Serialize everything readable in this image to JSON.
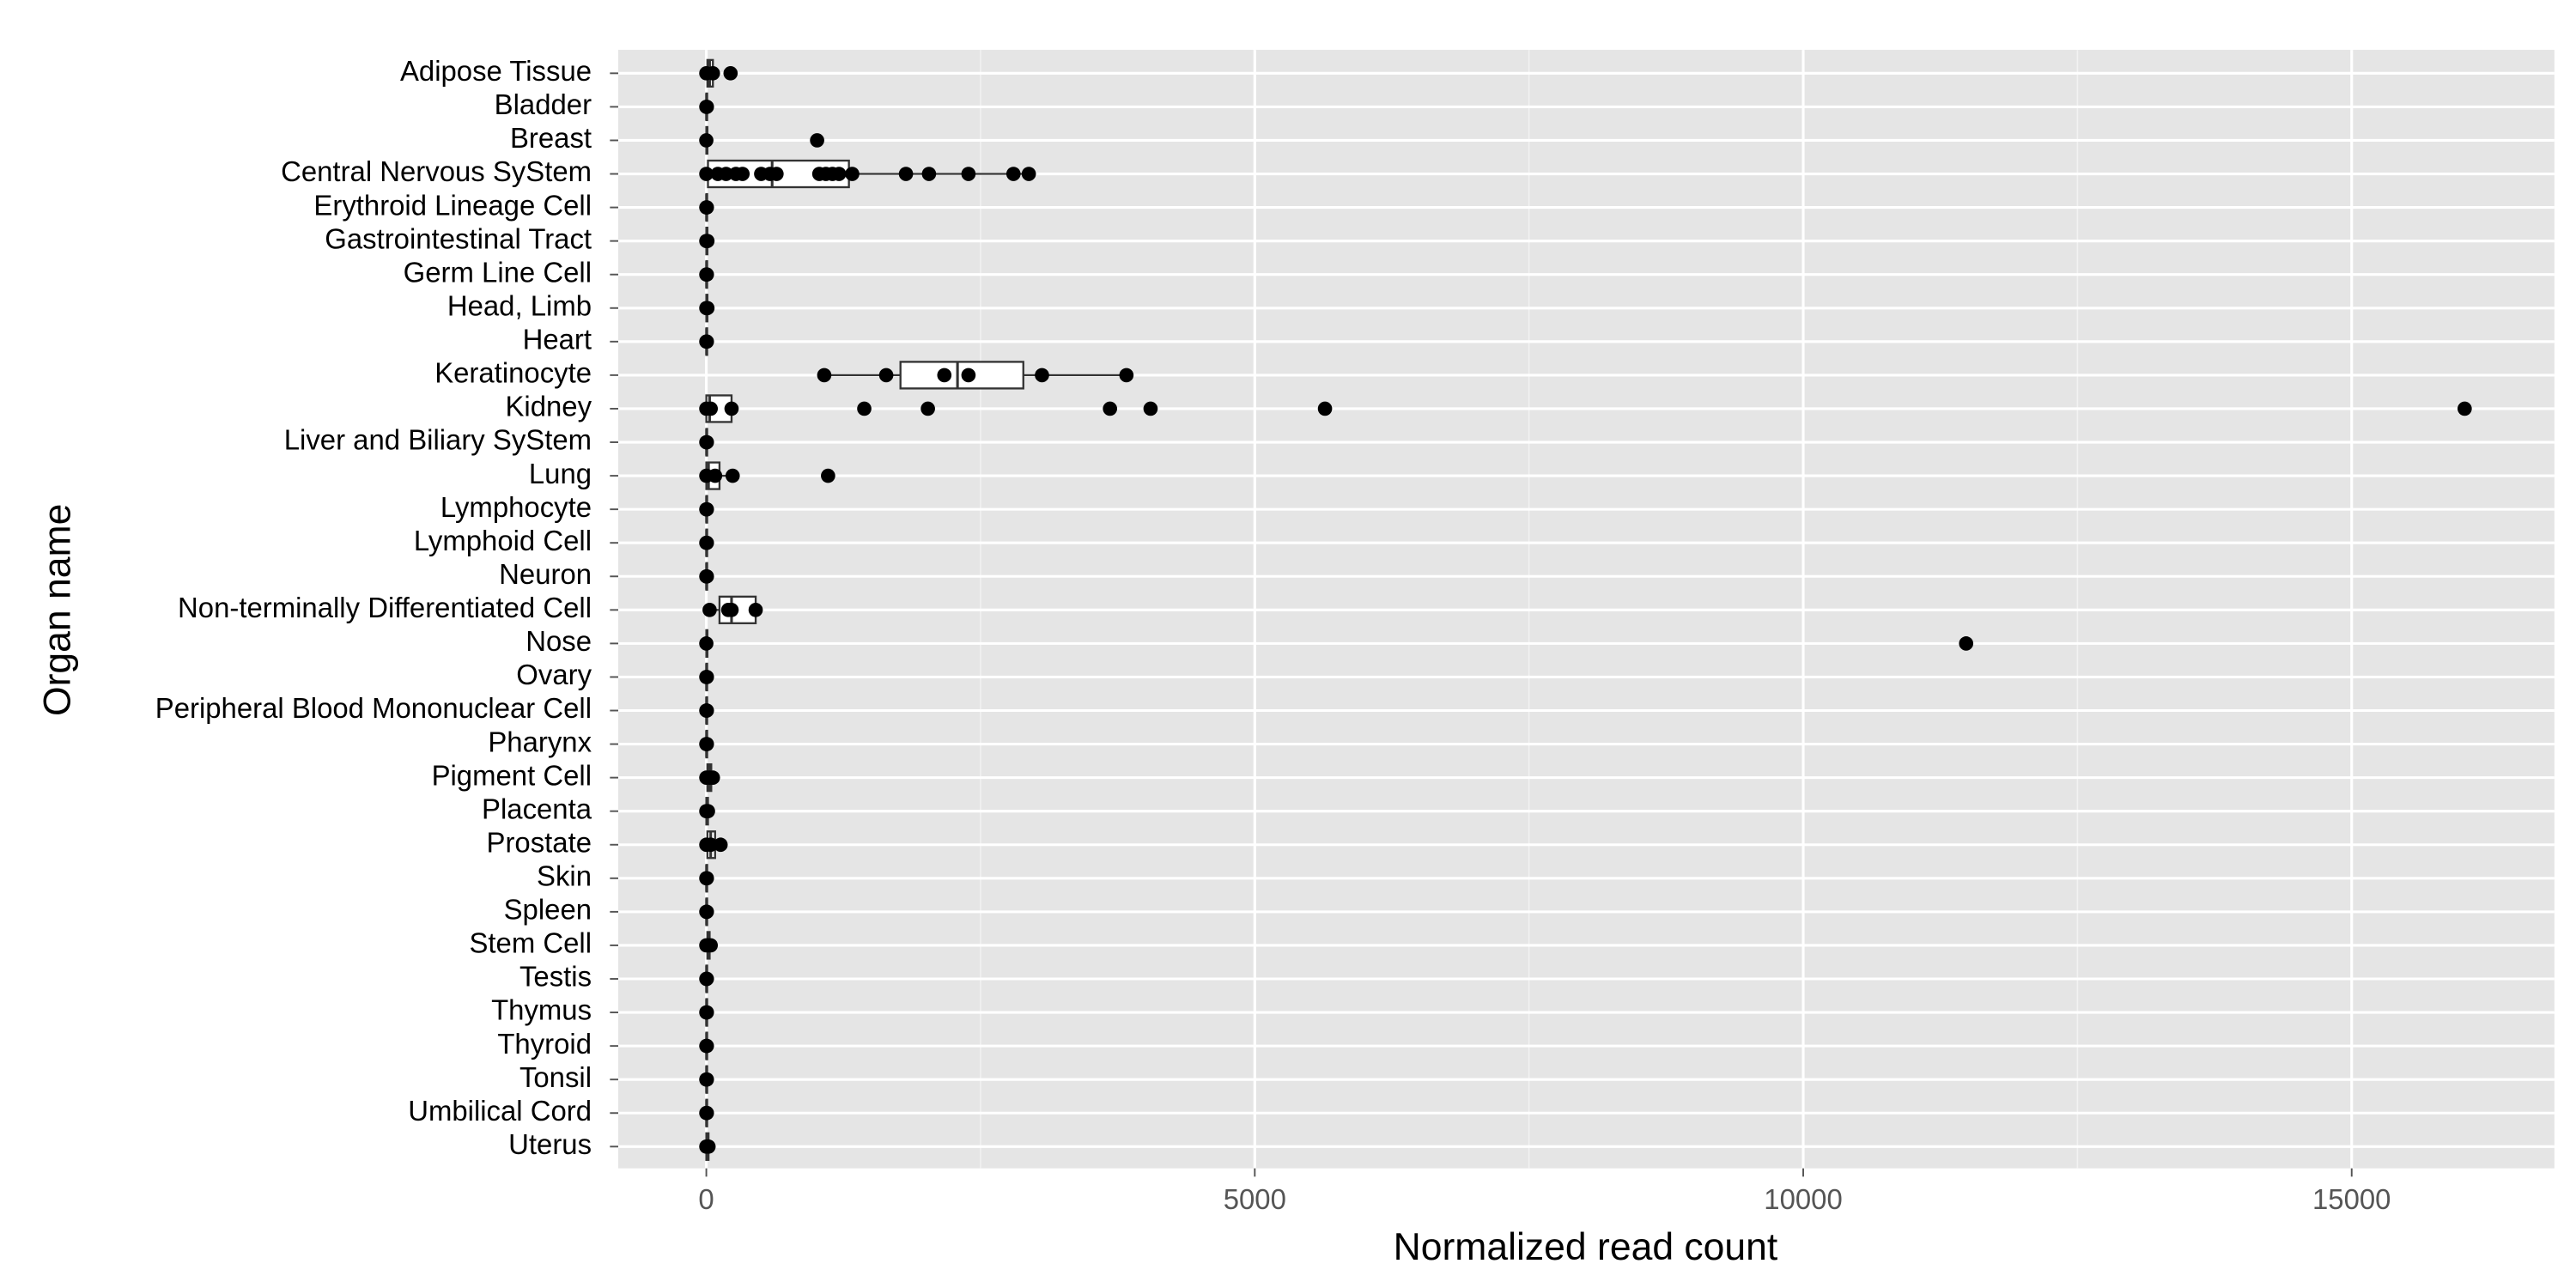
{
  "chart_data": {
    "type": "boxplot",
    "x_label": "Normalized read count",
    "y_label": "Organ name",
    "xlim": [
      -803,
      16848
    ],
    "xticks": [
      0,
      5000,
      10000,
      15000
    ],
    "x_minor_grid": [
      2500,
      7500,
      12500
    ],
    "grid": true,
    "panel_color": "#e5e5e5",
    "point_color": "#000000",
    "groups": [
      {
        "name": "Adipose Tissue",
        "points": [
          0,
          60,
          221
        ],
        "box": [
          0,
          10,
          30,
          60,
          100
        ]
      },
      {
        "name": "Bladder",
        "points": [
          0,
          5
        ],
        "box": [
          0,
          0,
          2,
          5,
          5
        ]
      },
      {
        "name": "Breast",
        "points": [
          0,
          1010
        ],
        "box": [
          0,
          0,
          5,
          10,
          10
        ]
      },
      {
        "name": "Central Nervous SyStem",
        "points": [
          0,
          105,
          180,
          270,
          330,
          500,
          580,
          640,
          1030,
          1090,
          1150,
          1210,
          1330,
          1820,
          2030,
          2390,
          2800,
          2940
        ],
        "box": [
          0,
          15,
          600,
          1300,
          2940
        ]
      },
      {
        "name": "Erythroid Lineage Cell",
        "points": [
          0,
          5
        ],
        "box": [
          0,
          0,
          2,
          5,
          5
        ]
      },
      {
        "name": "Gastrointestinal Tract",
        "points": [
          0,
          10
        ],
        "box": [
          0,
          0,
          5,
          10,
          10
        ]
      },
      {
        "name": "Germ Line Cell",
        "points": [
          0,
          5
        ],
        "box": [
          0,
          0,
          2,
          5,
          5
        ]
      },
      {
        "name": "Head, Limb",
        "points": [
          0,
          10
        ],
        "box": [
          0,
          0,
          5,
          10,
          10
        ]
      },
      {
        "name": "Heart",
        "points": [
          0,
          5
        ],
        "box": [
          0,
          0,
          2,
          5,
          5
        ]
      },
      {
        "name": "Keratinocyte",
        "points": [
          1075,
          1640,
          2170,
          2390,
          3060,
          3830
        ],
        "box": [
          1075,
          1770,
          2290,
          2890,
          3830
        ]
      },
      {
        "name": "Kidney",
        "points": [
          0,
          40,
          230,
          1440,
          2020,
          3680,
          4050,
          5640,
          16030
        ],
        "box": [
          0,
          0,
          30,
          230,
          230
        ]
      },
      {
        "name": "Liver and Biliary SyStem",
        "points": [
          0,
          5
        ],
        "box": [
          0,
          0,
          2,
          5,
          5
        ]
      },
      {
        "name": "Lung",
        "points": [
          0,
          80,
          240,
          1110
        ],
        "box": [
          0,
          0,
          20,
          120,
          240
        ]
      },
      {
        "name": "Lymphocyte",
        "points": [
          0,
          5
        ],
        "box": [
          0,
          0,
          2,
          5,
          5
        ]
      },
      {
        "name": "Lymphoid Cell",
        "points": [
          0,
          5
        ],
        "box": [
          0,
          0,
          2,
          5,
          5
        ]
      },
      {
        "name": "Neuron",
        "points": [
          0,
          5
        ],
        "box": [
          0,
          0,
          2,
          5,
          5
        ]
      },
      {
        "name": "Non-terminally Differentiated Cell",
        "points": [
          30,
          200,
          230,
          450
        ],
        "box": [
          30,
          120,
          230,
          450,
          450
        ]
      },
      {
        "name": "Nose",
        "points": [
          0,
          11485
        ],
        "box": [
          0,
          0,
          5,
          10,
          10
        ]
      },
      {
        "name": "Ovary",
        "points": [
          0,
          5
        ],
        "box": [
          0,
          0,
          2,
          5,
          5
        ]
      },
      {
        "name": "Peripheral Blood Mononuclear Cell",
        "points": [
          0,
          5
        ],
        "box": [
          0,
          0,
          2,
          5,
          5
        ]
      },
      {
        "name": "Pharynx",
        "points": [
          0,
          5
        ],
        "box": [
          0,
          0,
          2,
          5,
          5
        ]
      },
      {
        "name": "Pigment Cell",
        "points": [
          0,
          30,
          60
        ],
        "box": [
          0,
          10,
          30,
          45,
          60
        ]
      },
      {
        "name": "Placenta",
        "points": [
          0,
          15
        ],
        "box": [
          0,
          0,
          8,
          15,
          15
        ]
      },
      {
        "name": "Prostate",
        "points": [
          0,
          40,
          130
        ],
        "box": [
          0,
          10,
          40,
          80,
          130
        ]
      },
      {
        "name": "Skin",
        "points": [
          0,
          5
        ],
        "box": [
          0,
          0,
          2,
          5,
          5
        ]
      },
      {
        "name": "Spleen",
        "points": [
          0,
          5
        ],
        "box": [
          0,
          0,
          2,
          5,
          5
        ]
      },
      {
        "name": "Stem Cell",
        "points": [
          0,
          20,
          40
        ],
        "box": [
          0,
          10,
          20,
          30,
          40
        ]
      },
      {
        "name": "Testis",
        "points": [
          0,
          5
        ],
        "box": [
          0,
          0,
          2,
          5,
          5
        ]
      },
      {
        "name": "Thymus",
        "points": [
          0,
          5
        ],
        "box": [
          0,
          0,
          2,
          5,
          5
        ]
      },
      {
        "name": "Thyroid",
        "points": [
          0,
          5
        ],
        "box": [
          0,
          0,
          2,
          5,
          5
        ]
      },
      {
        "name": "Tonsil",
        "points": [
          0,
          5
        ],
        "box": [
          0,
          0,
          2,
          5,
          5
        ]
      },
      {
        "name": "Umbilical Cord",
        "points": [
          0,
          5
        ],
        "box": [
          0,
          0,
          2,
          5,
          5
        ]
      },
      {
        "name": "Uterus",
        "points": [
          0,
          20
        ],
        "box": [
          0,
          0,
          10,
          20,
          20
        ]
      }
    ]
  }
}
